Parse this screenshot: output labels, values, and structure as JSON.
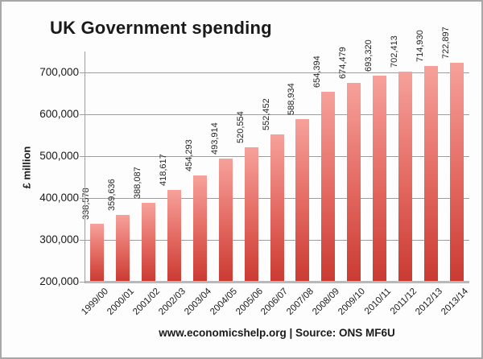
{
  "title": "UK Government spending",
  "footer": "www.economicshelp.org | Source: ONS MF6U",
  "colors": {
    "bar_top": "#f7a19b",
    "bar_mid": "#e2675f",
    "bar_bottom": "#ca3a32",
    "gridline": "#9e9e9e",
    "axis": "#9e9e9e",
    "baseline": "#b9b9b9",
    "text": "#1a1a1a",
    "background": "#fdfdfd",
    "border": "#a8a8a8"
  },
  "chart_data": {
    "type": "bar",
    "title": "UK Government spending",
    "xlabel": "",
    "ylabel": "£ million",
    "categories": [
      "1999/00",
      "2000/01",
      "2001/02",
      "2002/03",
      "2003/04",
      "2004/05",
      "2005/06",
      "2006/07",
      "2007/08",
      "2008/09",
      "2009/10",
      "2010/11",
      "2011/12",
      "2012/13",
      "2013/14"
    ],
    "values": [
      338578,
      359636,
      388087,
      418617,
      454293,
      493914,
      520554,
      552452,
      588934,
      654394,
      674479,
      693320,
      702413,
      714930,
      722897
    ],
    "value_labels": [
      "338,578",
      "359,636",
      "388,087",
      "418,617",
      "454,293",
      "493,914",
      "520,554",
      "552,452",
      "588,934",
      "654,394",
      "674,479",
      "693,320",
      "702,413",
      "714,930",
      "722,897"
    ],
    "yticks": [
      200000,
      300000,
      400000,
      500000,
      600000,
      700000
    ],
    "ytick_labels": [
      "200,000",
      "300,000",
      "400,000",
      "500,000",
      "600,000",
      "700,000"
    ],
    "ylim": [
      200000,
      750000
    ],
    "grid": true,
    "legend": "none",
    "source_note": "www.economicshelp.org | Source: ONS MF6U"
  }
}
